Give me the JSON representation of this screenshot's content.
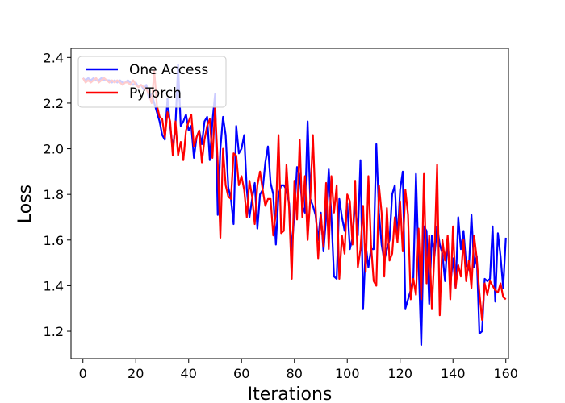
{
  "chart_data": {
    "type": "line",
    "title": "",
    "xlabel": "Iterations",
    "ylabel": "Loss",
    "xlim": [
      -4.5,
      161
    ],
    "ylim": [
      1.08,
      2.44
    ],
    "x_ticks": [
      0,
      20,
      40,
      60,
      80,
      100,
      120,
      140,
      160
    ],
    "y_ticks": [
      1.2,
      1.4,
      1.6,
      1.8,
      2.0,
      2.2,
      2.4
    ],
    "x_tick_labels": [
      "0",
      "20",
      "40",
      "60",
      "80",
      "100",
      "120",
      "140",
      "160"
    ],
    "y_tick_labels": [
      "1.2",
      "1.4",
      "1.6",
      "1.8",
      "2.0",
      "2.2",
      "2.4"
    ],
    "grid": false,
    "legend": {
      "position": "top-left"
    },
    "series": [
      {
        "name": "One Access",
        "color": "#0000ff",
        "values": [
          2.31,
          2.3,
          2.31,
          2.3,
          2.31,
          2.3,
          2.3,
          2.31,
          2.3,
          2.3,
          2.3,
          2.29,
          2.3,
          2.29,
          2.3,
          2.29,
          2.29,
          2.3,
          2.29,
          2.28,
          2.29,
          2.27,
          2.28,
          2.26,
          2.28,
          2.22,
          2.24,
          2.2,
          2.16,
          2.12,
          2.06,
          2.04,
          2.22,
          2.1,
          2.0,
          2.1,
          2.37,
          2.1,
          2.12,
          2.15,
          2.08,
          2.1,
          1.96,
          2.05,
          2.08,
          2.02,
          2.12,
          2.14,
          1.95,
          2.12,
          2.24,
          1.71,
          2.0,
          2.14,
          2.06,
          1.83,
          1.78,
          1.67,
          2.1,
          1.98,
          2.0,
          2.06,
          1.82,
          1.7,
          1.78,
          1.85,
          1.65,
          1.8,
          1.82,
          1.94,
          2.01,
          1.85,
          1.8,
          1.58,
          1.8,
          1.84,
          1.84,
          1.82,
          1.76,
          1.55,
          1.72,
          1.92,
          1.88,
          1.75,
          1.72,
          2.12,
          1.78,
          1.75,
          1.71,
          1.6,
          1.72,
          1.55,
          1.7,
          1.91,
          1.7,
          1.44,
          1.43,
          1.78,
          1.7,
          1.64,
          1.76,
          1.56,
          1.61,
          1.77,
          1.62,
          1.95,
          1.3,
          1.58,
          1.48,
          1.56,
          1.56,
          2.02,
          1.72,
          1.58,
          1.51,
          1.56,
          1.6,
          1.8,
          1.84,
          1.6,
          1.82,
          1.9,
          1.3,
          1.34,
          1.38,
          1.43,
          1.89,
          1.5,
          1.14,
          1.66,
          1.64,
          1.32,
          1.62,
          1.53,
          1.66,
          1.58,
          1.54,
          1.42,
          1.61,
          1.4,
          1.52,
          1.39,
          1.7,
          1.56,
          1.64,
          1.49,
          1.47,
          1.71,
          1.48,
          1.53,
          1.19,
          1.2,
          1.43,
          1.42,
          1.43,
          1.66,
          1.33,
          1.63,
          1.53,
          1.39,
          1.61
        ]
      },
      {
        "name": "PyTorch",
        "color": "#ff0000",
        "values": [
          2.31,
          2.29,
          2.3,
          2.29,
          2.3,
          2.31,
          2.29,
          2.3,
          2.31,
          2.3,
          2.29,
          2.3,
          2.29,
          2.3,
          2.29,
          2.28,
          2.29,
          2.29,
          2.28,
          2.3,
          2.28,
          2.27,
          2.28,
          2.27,
          2.26,
          2.24,
          2.2,
          2.34,
          2.19,
          2.14,
          2.13,
          2.05,
          2.16,
          2.12,
          1.97,
          2.12,
          1.97,
          2.03,
          1.95,
          2.08,
          2.12,
          2.15,
          2.01,
          2.05,
          2.08,
          1.94,
          2.04,
          2.1,
          2.13,
          1.96,
          2.18,
          1.94,
          1.61,
          2.0,
          1.84,
          1.79,
          1.78,
          1.98,
          1.97,
          1.84,
          1.88,
          1.82,
          1.7,
          1.86,
          1.79,
          1.67,
          1.84,
          1.9,
          1.82,
          1.75,
          1.78,
          1.78,
          1.62,
          1.72,
          2.06,
          1.63,
          1.64,
          1.93,
          1.74,
          1.43,
          1.86,
          1.69,
          2.04,
          1.7,
          1.88,
          1.6,
          1.78,
          2.06,
          1.75,
          1.52,
          1.71,
          1.57,
          1.85,
          1.56,
          1.88,
          1.72,
          1.84,
          1.43,
          1.62,
          1.54,
          1.8,
          1.77,
          1.58,
          1.86,
          1.48,
          1.56,
          1.75,
          1.46,
          1.88,
          1.58,
          1.42,
          1.4,
          1.84,
          1.72,
          1.44,
          1.74,
          1.51,
          1.54,
          1.7,
          1.59,
          1.77,
          1.55,
          1.82,
          1.71,
          1.34,
          1.43,
          1.36,
          1.65,
          1.34,
          1.89,
          1.41,
          1.62,
          1.3,
          1.54,
          1.93,
          1.27,
          1.6,
          1.51,
          1.62,
          1.34,
          1.66,
          1.39,
          1.49,
          1.44,
          1.6,
          1.42,
          1.51,
          1.39,
          1.62,
          1.52,
          1.37,
          1.25,
          1.41,
          1.36,
          1.42,
          1.4,
          1.38,
          1.37,
          1.41,
          1.35,
          1.34
        ]
      }
    ]
  }
}
